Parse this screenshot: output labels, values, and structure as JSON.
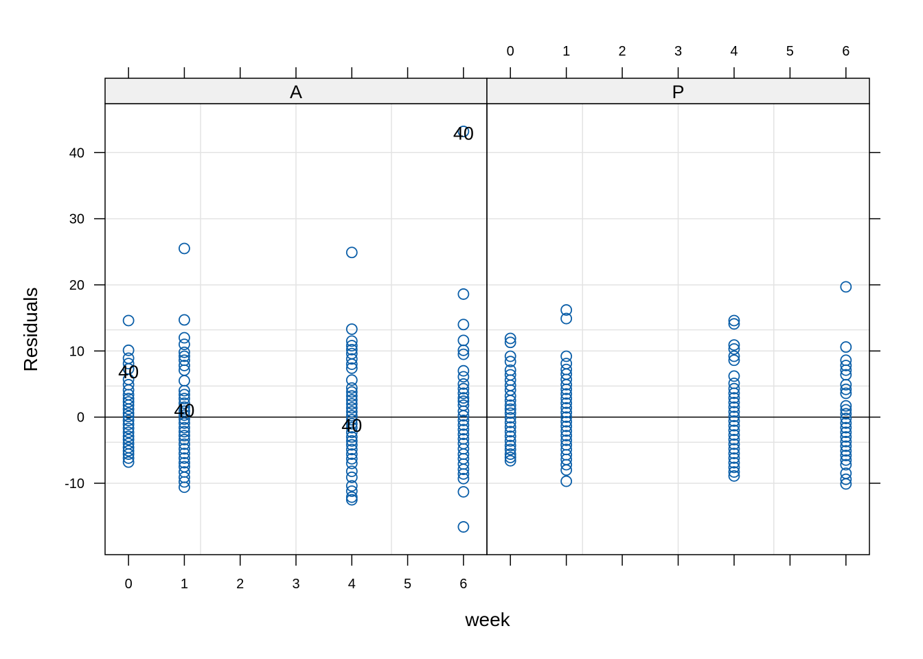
{
  "chart_data": {
    "type": "scatter",
    "xlabel": "week",
    "ylabel": "Residuals",
    "x_ticks": [
      0,
      1,
      2,
      3,
      4,
      5,
      6
    ],
    "y_ticks": [
      -10,
      0,
      10,
      20,
      30,
      40
    ],
    "y_tick_labels": [
      "-10",
      "0",
      "10",
      "20",
      "30",
      "40"
    ],
    "xlim": [
      -0.42,
      6.42
    ],
    "ylim": [
      -20.8,
      47.4
    ],
    "reference_line_y": 0,
    "grid": true,
    "point_color": "#0A5EA8",
    "panels": [
      {
        "name": "A",
        "x_axis_side": "bottom",
        "points": [
          {
            "x": 0,
            "y": [
              14.6,
              10.1,
              8.9,
              8.1,
              7.3,
              5.7,
              4.9,
              4.1,
              3.4,
              2.8,
              2.3,
              1.8,
              1.2,
              0.6,
              0.1,
              -0.5,
              -1.1,
              -1.7,
              -2.3,
              -2.9,
              -3.4,
              -4.0,
              -4.6,
              -5.1,
              -5.6,
              -6.2,
              -6.8
            ]
          },
          {
            "x": 1,
            "y": [
              25.5,
              14.7,
              12.0,
              11.0,
              9.8,
              9.2,
              8.6,
              7.8,
              7.1,
              5.5,
              4.0,
              3.4,
              2.8,
              2.1,
              1.5,
              0.9,
              0.3,
              -0.3,
              -0.9,
              -1.6,
              -2.2,
              -2.8,
              -3.4,
              -4.1,
              -4.8,
              -5.5,
              -6.2,
              -6.9,
              -7.5,
              -8.3,
              -9.1,
              -9.8,
              -10.6
            ]
          },
          {
            "x": 4,
            "y": [
              24.9,
              13.3,
              11.5,
              10.8,
              10.2,
              9.6,
              8.8,
              8.0,
              7.4,
              5.6,
              4.4,
              3.8,
              3.2,
              2.6,
              2.0,
              1.4,
              0.8,
              0.2,
              -0.4,
              -1.0,
              -1.6,
              -2.3,
              -3.0,
              -3.6,
              -4.2,
              -4.9,
              -5.6,
              -6.3,
              -7.0,
              -8.2,
              -9.1,
              -10.4,
              -11.2,
              -12.1,
              -12.5
            ]
          },
          {
            "x": 6,
            "y": [
              43.2,
              18.6,
              14.0,
              11.6,
              10.1,
              9.5,
              7.0,
              6.1,
              5.0,
              4.3,
              3.6,
              2.9,
              2.4,
              1.8,
              0.9,
              0.2,
              -0.5,
              -1.2,
              -1.9,
              -2.6,
              -3.3,
              -4.0,
              -4.8,
              -5.6,
              -6.3,
              -7.1,
              -7.9,
              -8.6,
              -9.3,
              -11.3,
              -16.6
            ]
          }
        ],
        "labels": [
          {
            "text": "40",
            "x": 0,
            "y": 6.9
          },
          {
            "text": "40",
            "x": 1,
            "y": 1.1
          },
          {
            "text": "40",
            "x": 4,
            "y": -1.2
          },
          {
            "text": "40",
            "x": 6,
            "y": 43.0
          }
        ]
      },
      {
        "name": "P",
        "x_axis_side": "top",
        "points": [
          {
            "x": 0,
            "y": [
              11.9,
              11.3,
              9.2,
              8.4,
              7.1,
              6.4,
              5.6,
              4.8,
              4.1,
              3.2,
              2.5,
              1.8,
              1.2,
              0.6,
              -0.1,
              -0.8,
              -1.5,
              -2.2,
              -2.9,
              -3.6,
              -4.3,
              -4.9,
              -5.6,
              -6.1,
              -6.6
            ]
          },
          {
            "x": 1,
            "y": [
              16.2,
              14.9,
              9.2,
              8.1,
              7.2,
              6.5,
              5.7,
              4.9,
              4.2,
              3.5,
              2.8,
              2.1,
              1.4,
              0.7,
              0.0,
              -0.7,
              -1.4,
              -2.1,
              -2.8,
              -3.5,
              -4.2,
              -4.9,
              -5.7,
              -6.4,
              -7.2,
              -8.0,
              -9.7
            ]
          },
          {
            "x": 4,
            "y": [
              14.6,
              14.1,
              10.9,
              10.3,
              9.2,
              8.6,
              6.2,
              5.1,
              4.3,
              3.6,
              2.9,
              2.2,
              1.5,
              0.8,
              0.1,
              -0.6,
              -1.3,
              -2.0,
              -2.7,
              -3.4,
              -4.1,
              -4.8,
              -5.5,
              -6.2,
              -6.9,
              -7.6,
              -8.3,
              -8.9
            ]
          },
          {
            "x": 6,
            "y": [
              19.7,
              10.6,
              8.6,
              7.8,
              7.1,
              6.4,
              4.9,
              4.2,
              3.6,
              1.7,
              1.1,
              0.5,
              -0.2,
              -0.9,
              -1.6,
              -2.3,
              -3.0,
              -3.7,
              -4.4,
              -5.1,
              -5.8,
              -6.5,
              -7.2,
              -8.5,
              -9.4,
              -10.1
            ]
          }
        ],
        "labels": []
      }
    ]
  }
}
